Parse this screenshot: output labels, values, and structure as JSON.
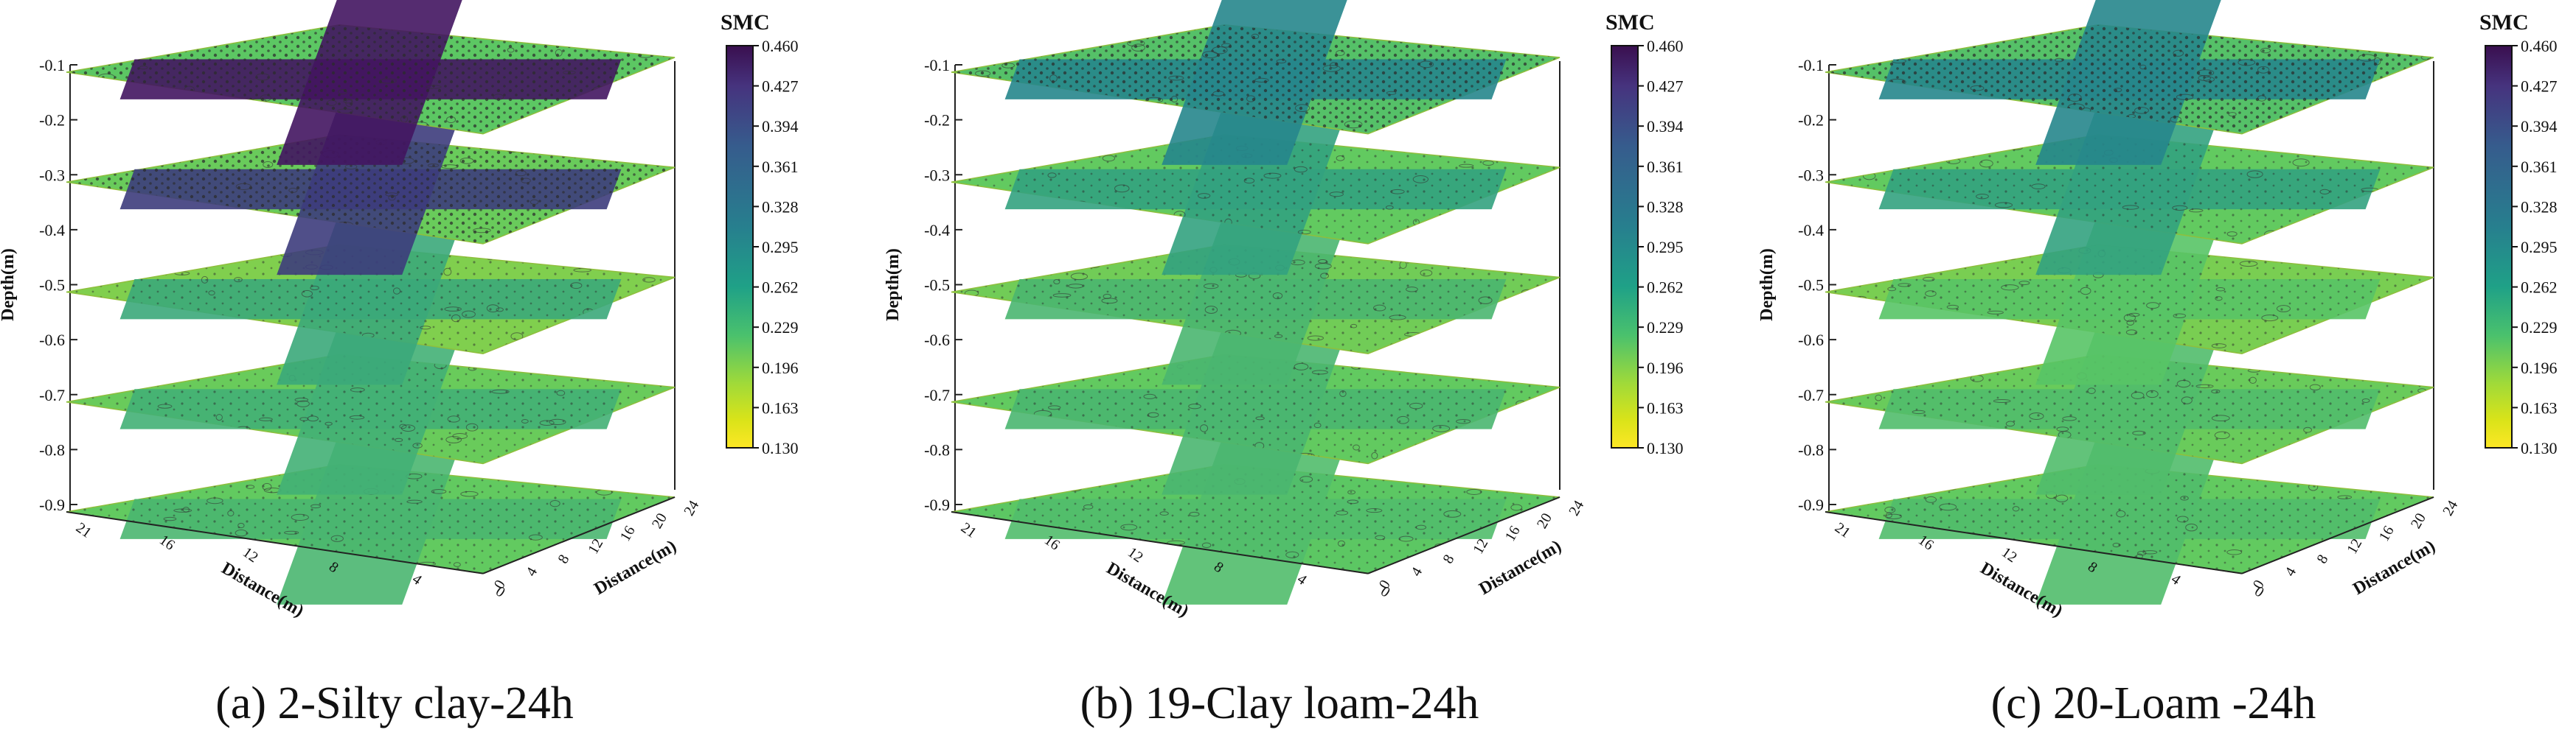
{
  "chart_data": [
    {
      "type": "heatmap",
      "subtype": "stacked-3d-contour-slices",
      "panel_caption": "(a) 2-Silty clay-24h",
      "colorbar_title": "SMC",
      "colorbar_ticks": [
        "0.460",
        "0.427",
        "0.394",
        "0.361",
        "0.328",
        "0.295",
        "0.262",
        "0.229",
        "0.196",
        "0.163",
        "0.130"
      ],
      "clim": [
        0.13,
        0.46
      ],
      "zlabel": "Depth(m)",
      "z_ticks": [
        "-0.1",
        "-0.2",
        "-0.3",
        "-0.4",
        "-0.5",
        "-0.6",
        "-0.7",
        "-0.8",
        "-0.9"
      ],
      "xlabel": "Distance(m)",
      "x_ticks": [
        "0",
        "4",
        "8",
        "12",
        "16",
        "21"
      ],
      "ylabel": "Distance(m)",
      "y_ticks": [
        "0",
        "4",
        "8",
        "12",
        "16",
        "20",
        "24"
      ],
      "slices": [
        {
          "depth": -0.1,
          "base_smc": 0.215,
          "wet_smc": 0.44
        },
        {
          "depth": -0.3,
          "base_smc": 0.205,
          "wet_smc": 0.4
        },
        {
          "depth": -0.5,
          "base_smc": 0.19,
          "wet_smc": 0.26
        },
        {
          "depth": -0.7,
          "base_smc": 0.205,
          "wet_smc": 0.25
        },
        {
          "depth": -0.9,
          "base_smc": 0.21,
          "wet_smc": 0.24
        }
      ]
    },
    {
      "type": "heatmap",
      "subtype": "stacked-3d-contour-slices",
      "panel_caption": "(b) 19-Clay loam-24h",
      "colorbar_title": "SMC",
      "colorbar_ticks": [
        "0.460",
        "0.427",
        "0.394",
        "0.361",
        "0.328",
        "0.295",
        "0.262",
        "0.229",
        "0.196",
        "0.163",
        "0.130"
      ],
      "clim": [
        0.13,
        0.46
      ],
      "zlabel": "Depth(m)",
      "z_ticks": [
        "-0.1",
        "-0.2",
        "-0.3",
        "-0.4",
        "-0.5",
        "-0.6",
        "-0.7",
        "-0.8",
        "-0.9"
      ],
      "xlabel": "Distance(m)",
      "x_ticks": [
        "0",
        "4",
        "8",
        "12",
        "16",
        "21"
      ],
      "ylabel": "Distance(m)",
      "y_ticks": [
        "0",
        "4",
        "8",
        "12",
        "16",
        "20",
        "24"
      ],
      "slices": [
        {
          "depth": -0.1,
          "base_smc": 0.225,
          "wet_smc": 0.31
        },
        {
          "depth": -0.3,
          "base_smc": 0.21,
          "wet_smc": 0.27
        },
        {
          "depth": -0.5,
          "base_smc": 0.2,
          "wet_smc": 0.24
        },
        {
          "depth": -0.7,
          "base_smc": 0.21,
          "wet_smc": 0.24
        },
        {
          "depth": -0.9,
          "base_smc": 0.215,
          "wet_smc": 0.23
        }
      ]
    },
    {
      "type": "heatmap",
      "subtype": "stacked-3d-contour-slices",
      "panel_caption": "(c) 20-Loam -24h",
      "colorbar_title": "SMC",
      "colorbar_ticks": [
        "0.460",
        "0.427",
        "0.394",
        "0.361",
        "0.328",
        "0.295",
        "0.262",
        "0.229",
        "0.196",
        "0.163",
        "0.130"
      ],
      "clim": [
        0.13,
        0.46
      ],
      "zlabel": "Depth(m)",
      "z_ticks": [
        "-0.1",
        "-0.2",
        "-0.3",
        "-0.4",
        "-0.5",
        "-0.6",
        "-0.7",
        "-0.8",
        "-0.9"
      ],
      "xlabel": "Distance(m)",
      "x_ticks": [
        "0",
        "4",
        "8",
        "12",
        "16",
        "21"
      ],
      "ylabel": "Distance(m)",
      "y_ticks": [
        "0",
        "4",
        "8",
        "12",
        "16",
        "20",
        "24"
      ],
      "slices": [
        {
          "depth": -0.1,
          "base_smc": 0.225,
          "wet_smc": 0.31
        },
        {
          "depth": -0.3,
          "base_smc": 0.21,
          "wet_smc": 0.27
        },
        {
          "depth": -0.5,
          "base_smc": 0.195,
          "wet_smc": 0.22
        },
        {
          "depth": -0.7,
          "base_smc": 0.205,
          "wet_smc": 0.23
        },
        {
          "depth": -0.9,
          "base_smc": 0.21,
          "wet_smc": 0.23
        }
      ]
    }
  ],
  "colors": {
    "colormap": [
      "#440154",
      "#3b528b",
      "#21918c",
      "#5ec962",
      "#9fd53b",
      "#fde725"
    ],
    "axis": "#222222",
    "contour": "#2b2b2b"
  }
}
